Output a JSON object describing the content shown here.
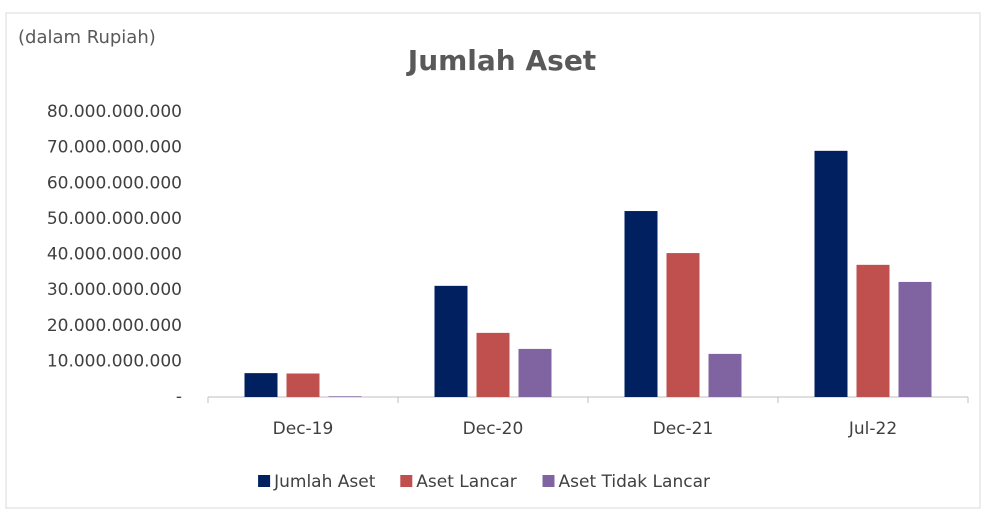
{
  "chart_data": {
    "type": "bar",
    "title": "Jumlah Aset",
    "y_label": "(dalam Rupiah)",
    "categories": [
      "Dec-19",
      "Dec-20",
      "Dec-21",
      "Jul-22"
    ],
    "series": [
      {
        "name": "Jumlah Aset",
        "color": "#002060",
        "values": [
          6700000000,
          31200000000,
          52200000000,
          69100000000
        ]
      },
      {
        "name": "Aset Lancar",
        "color": "#c0504d",
        "values": [
          6600000000,
          18000000000,
          40400000000,
          37100000000
        ]
      },
      {
        "name": "Aset Tidak Lancar",
        "color": "#8064a2",
        "values": [
          200000000,
          13500000000,
          12100000000,
          32300000000
        ]
      }
    ],
    "ylim": [
      0,
      80000000000
    ],
    "yticks": [
      {
        "value": 0,
        "label": "-"
      },
      {
        "value": 10000000000,
        "label": "10.000.000.000"
      },
      {
        "value": 20000000000,
        "label": "20.000.000.000"
      },
      {
        "value": 30000000000,
        "label": "30.000.000.000"
      },
      {
        "value": 40000000000,
        "label": "40.000.000.000"
      },
      {
        "value": 50000000000,
        "label": "50.000.000.000"
      },
      {
        "value": 60000000000,
        "label": "60.000.000.000"
      },
      {
        "value": 70000000000,
        "label": "70.000.000.000"
      },
      {
        "value": 80000000000,
        "label": "80.000.000.000"
      }
    ],
    "grid": false,
    "legend": "bottom"
  }
}
